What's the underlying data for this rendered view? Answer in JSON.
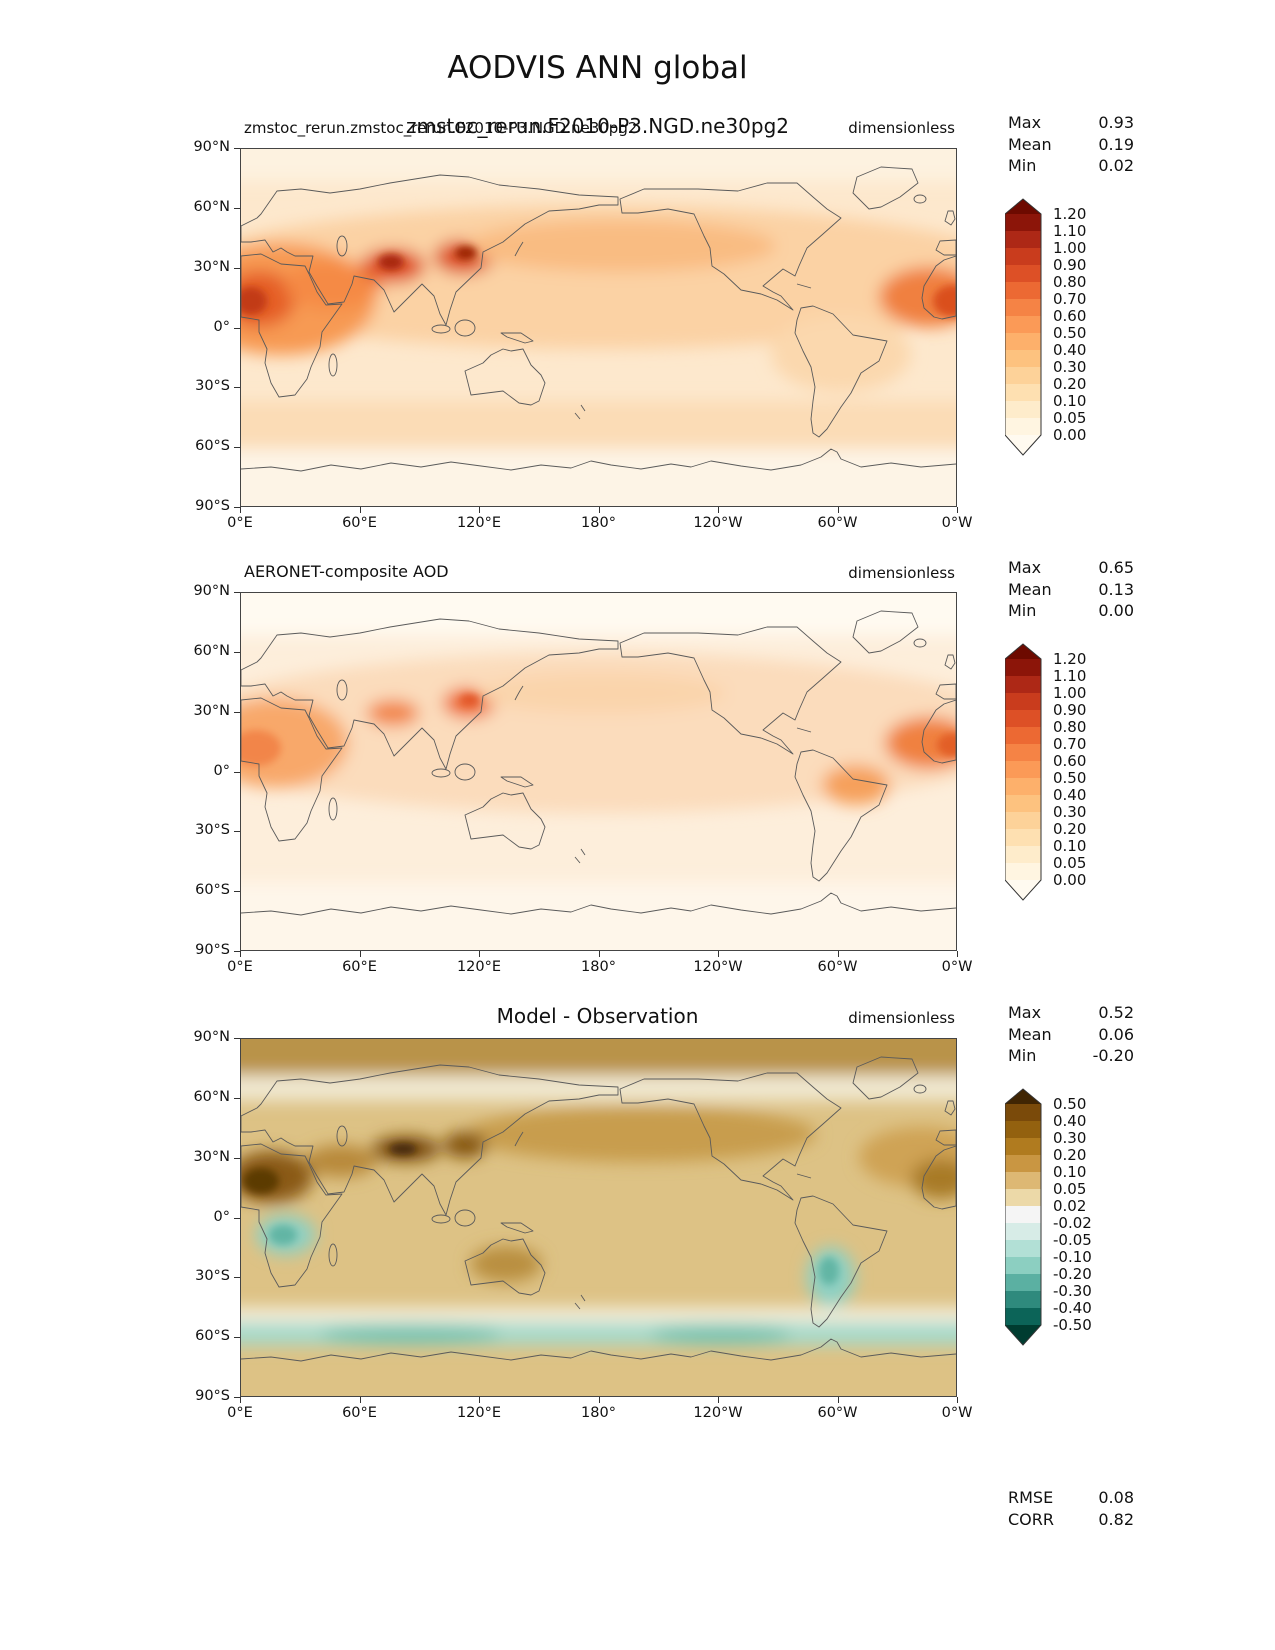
{
  "figure": {
    "title": "AODVIS ANN global"
  },
  "axes": {
    "x_ticks": [
      "0°E",
      "60°E",
      "120°E",
      "180°",
      "120°W",
      "60°W",
      "0°W"
    ],
    "y_ticks": [
      "90°N",
      "60°N",
      "30°N",
      "0°",
      "30°S",
      "60°S",
      "90°S"
    ]
  },
  "panels": [
    {
      "name": "model",
      "title_small": "zmstoc_rerun.zmstoc_rerun.F2010-P3.NGD.ne30pg2",
      "title_large": "zmstoc_rerun.F2010-P3.NGD.ne30pg2",
      "units": "dimensionless",
      "stats": [
        {
          "label": "Max",
          "value": "0.93"
        },
        {
          "label": "Mean",
          "value": "0.19"
        },
        {
          "label": "Min",
          "value": "0.02"
        }
      ],
      "colorbar": {
        "labels": [
          "1.20",
          "1.10",
          "1.00",
          "0.90",
          "0.80",
          "0.70",
          "0.60",
          "0.50",
          "0.40",
          "0.30",
          "0.20",
          "0.10",
          "0.05",
          "0.00"
        ],
        "cell_colors_top_to_bottom": [
          "#8c1509",
          "#ad2816",
          "#c93c1d",
          "#dd5026",
          "#ec6933",
          "#f58345",
          "#fb9a57",
          "#fdb06b",
          "#fdc27f",
          "#fdd299",
          "#fee0b1",
          "#feeccb",
          "#fff5e1"
        ],
        "arrow_top": "#6d0a00",
        "arrow_bottom": "#fffaf0"
      }
    },
    {
      "name": "obs",
      "title_small": "AERONET-composite AOD",
      "title_large": "",
      "units": "dimensionless",
      "stats": [
        {
          "label": "Max",
          "value": "0.65"
        },
        {
          "label": "Mean",
          "value": "0.13"
        },
        {
          "label": "Min",
          "value": "0.00"
        }
      ],
      "colorbar": {
        "labels": [
          "1.20",
          "1.10",
          "1.00",
          "0.90",
          "0.80",
          "0.70",
          "0.60",
          "0.50",
          "0.40",
          "0.30",
          "0.20",
          "0.10",
          "0.05",
          "0.00"
        ],
        "cell_colors_top_to_bottom": [
          "#8c1509",
          "#ad2816",
          "#c93c1d",
          "#dd5026",
          "#ec6933",
          "#f58345",
          "#fb9a57",
          "#fdb06b",
          "#fdc27f",
          "#fdd299",
          "#fee0b1",
          "#feeccb",
          "#fff5e1"
        ],
        "arrow_top": "#6d0a00",
        "arrow_bottom": "#fffaf0"
      }
    },
    {
      "name": "diff",
      "title_small": "",
      "title_large": "Model - Observation",
      "units": "dimensionless",
      "stats": [
        {
          "label": "Max",
          "value": "0.52"
        },
        {
          "label": "Mean",
          "value": "0.06"
        },
        {
          "label": "Min",
          "value": "-0.20"
        }
      ],
      "colorbar": {
        "labels": [
          "0.50",
          "0.40",
          "0.30",
          "0.20",
          "0.10",
          "0.05",
          "0.02",
          "-0.02",
          "-0.05",
          "-0.10",
          "-0.20",
          "-0.30",
          "-0.40",
          "-0.50"
        ],
        "cell_colors_top_to_bottom": [
          "#7a4a0a",
          "#93610f",
          "#b07b1f",
          "#c99642",
          "#ddb874",
          "#ecd9a8",
          "#f5f5f5",
          "#d7ece7",
          "#b2e0d6",
          "#8ccfc1",
          "#5bb0a2",
          "#2f8a7d",
          "#0c6458"
        ],
        "arrow_top": "#402503",
        "arrow_bottom": "#003c30"
      },
      "extra_stats": [
        {
          "label": "RMSE",
          "value": "0.08"
        },
        {
          "label": "CORR",
          "value": "0.82"
        }
      ]
    }
  ],
  "chart_data": [
    {
      "type": "heatmap",
      "subtype": "global lat-lon filled-contour map, cylindrical projection centered on 180°",
      "variable": "AODVIS",
      "season": "ANN",
      "region": "global",
      "title": "zmstoc_rerun.F2010-P3.NGD.ne30pg2",
      "units": "dimensionless",
      "x_ticks": [
        "0°E",
        "60°E",
        "120°E",
        "180°",
        "120°W",
        "60°W",
        "0°W"
      ],
      "y_ticks": [
        "90°N",
        "60°N",
        "30°N",
        "0°",
        "30°S",
        "60°S",
        "90°S"
      ],
      "contour_levels": [
        0.0,
        0.05,
        0.1,
        0.2,
        0.3,
        0.4,
        0.5,
        0.6,
        0.7,
        0.8,
        0.9,
        1.0,
        1.1,
        1.2
      ],
      "stats": {
        "max": 0.93,
        "mean": 0.19,
        "min": 0.02
      },
      "high_value_regions": [
        "West/North Africa",
        "Middle East",
        "Northern India / Tibetan Plateau margin",
        "East China",
        "tropical North Atlantic dust plume"
      ]
    },
    {
      "type": "heatmap",
      "subtype": "global lat-lon filled-contour map, cylindrical projection centered on 180°",
      "variable": "AOD (observed)",
      "season": "ANN",
      "region": "global",
      "title": "AERONET-composite AOD",
      "units": "dimensionless",
      "x_ticks": [
        "0°E",
        "60°E",
        "120°E",
        "180°",
        "120°W",
        "60°W",
        "0°W"
      ],
      "y_ticks": [
        "90°N",
        "60°N",
        "30°N",
        "0°",
        "30°S",
        "60°S",
        "90°S"
      ],
      "contour_levels": [
        0.0,
        0.05,
        0.1,
        0.2,
        0.3,
        0.4,
        0.5,
        0.6,
        0.7,
        0.8,
        0.9,
        1.0,
        1.1,
        1.2
      ],
      "stats": {
        "max": 0.65,
        "mean": 0.13,
        "min": 0.0
      },
      "high_value_regions": [
        "North Africa",
        "Northern India",
        "East China",
        "tropical North Atlantic",
        "South America biomass-burning region"
      ]
    },
    {
      "type": "heatmap",
      "subtype": "global lat-lon filled-contour difference map, diverging brown-teal colormap",
      "variable": "AOD difference",
      "season": "ANN",
      "region": "global",
      "title": "Model - Observation",
      "units": "dimensionless",
      "x_ticks": [
        "0°E",
        "60°E",
        "120°E",
        "180°",
        "120°W",
        "60°W",
        "0°W"
      ],
      "y_ticks": [
        "90°N",
        "60°N",
        "30°N",
        "0°",
        "30°S",
        "60°S",
        "90°S"
      ],
      "contour_levels": [
        -0.5,
        -0.4,
        -0.3,
        -0.2,
        -0.1,
        -0.05,
        -0.02,
        0.02,
        0.05,
        0.1,
        0.2,
        0.3,
        0.4,
        0.5
      ],
      "stats": {
        "max": 0.52,
        "mean": 0.06,
        "min": -0.2,
        "rmse": 0.08,
        "corr": 0.82
      },
      "positive_regions": [
        "western Sahara",
        "Tibetan Plateau / Himalaya",
        "East China",
        "North Pacific band",
        "Arctic band"
      ],
      "negative_regions": [
        "central Africa (Congo)",
        "southern South America",
        "Southern Ocean band near 60°S"
      ]
    }
  ]
}
